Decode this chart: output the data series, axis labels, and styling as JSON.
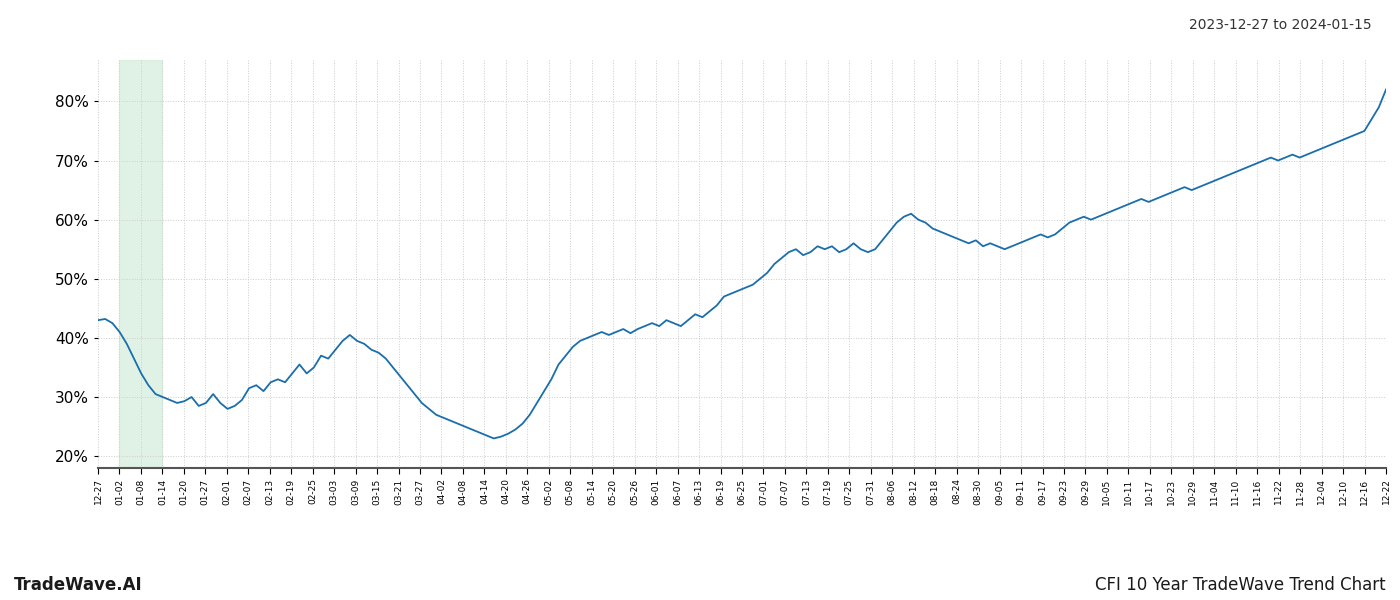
{
  "title_right": "2023-12-27 to 2024-01-15",
  "footer_left": "TradeWave.AI",
  "footer_right": "CFI 10 Year TradeWave Trend Chart",
  "line_color": "#1a6eab",
  "line_width": 1.3,
  "highlight_color": "#d4edda",
  "highlight_alpha": 0.7,
  "background_color": "#ffffff",
  "grid_color": "#cccccc",
  "ylim": [
    18,
    87
  ],
  "yticks": [
    20,
    30,
    40,
    50,
    60,
    70,
    80
  ],
  "x_labels": [
    "12-27",
    "01-02",
    "01-08",
    "01-14",
    "01-20",
    "01-27",
    "02-01",
    "02-07",
    "02-13",
    "02-19",
    "02-25",
    "03-03",
    "03-09",
    "03-15",
    "03-21",
    "03-27",
    "04-02",
    "04-08",
    "04-14",
    "04-20",
    "04-26",
    "05-02",
    "05-08",
    "05-14",
    "05-20",
    "05-26",
    "06-01",
    "06-07",
    "06-13",
    "06-19",
    "06-25",
    "07-01",
    "07-07",
    "07-13",
    "07-19",
    "07-25",
    "07-31",
    "08-06",
    "08-12",
    "08-18",
    "08-24",
    "08-30",
    "09-05",
    "09-11",
    "09-17",
    "09-23",
    "09-29",
    "10-05",
    "10-11",
    "10-17",
    "10-23",
    "10-29",
    "11-04",
    "11-10",
    "11-16",
    "11-22",
    "11-28",
    "12-04",
    "12-10",
    "12-16",
    "12-22"
  ],
  "highlight_label_start": "01-02",
  "highlight_label_end": "01-14",
  "values": [
    43.0,
    43.2,
    42.5,
    41.0,
    39.0,
    36.5,
    34.0,
    32.0,
    30.5,
    30.0,
    29.5,
    29.0,
    29.3,
    30.0,
    28.5,
    29.0,
    30.5,
    29.0,
    28.0,
    28.5,
    29.5,
    31.5,
    32.0,
    31.0,
    32.5,
    33.0,
    32.5,
    34.0,
    35.5,
    34.0,
    35.0,
    37.0,
    36.5,
    38.0,
    39.5,
    40.5,
    39.5,
    39.0,
    38.0,
    37.5,
    36.5,
    35.0,
    33.5,
    32.0,
    30.5,
    29.0,
    28.0,
    27.0,
    26.5,
    26.0,
    25.5,
    25.0,
    24.5,
    24.0,
    23.5,
    23.0,
    23.3,
    23.8,
    24.5,
    25.5,
    27.0,
    29.0,
    31.0,
    33.0,
    35.5,
    37.0,
    38.5,
    39.5,
    40.0,
    40.5,
    41.0,
    40.5,
    41.0,
    41.5,
    40.8,
    41.5,
    42.0,
    42.5,
    42.0,
    43.0,
    42.5,
    42.0,
    43.0,
    44.0,
    43.5,
    44.5,
    45.5,
    47.0,
    47.5,
    48.0,
    48.5,
    49.0,
    50.0,
    51.0,
    52.5,
    53.5,
    54.5,
    55.0,
    54.0,
    54.5,
    55.5,
    55.0,
    55.5,
    54.5,
    55.0,
    56.0,
    55.0,
    54.5,
    55.0,
    56.5,
    58.0,
    59.5,
    60.5,
    61.0,
    60.0,
    59.5,
    58.5,
    58.0,
    57.5,
    57.0,
    56.5,
    56.0,
    56.5,
    55.5,
    56.0,
    55.5,
    55.0,
    55.5,
    56.0,
    56.5,
    57.0,
    57.5,
    57.0,
    57.5,
    58.5,
    59.5,
    60.0,
    60.5,
    60.0,
    60.5,
    61.0,
    61.5,
    62.0,
    62.5,
    63.0,
    63.5,
    63.0,
    63.5,
    64.0,
    64.5,
    65.0,
    65.5,
    65.0,
    65.5,
    66.0,
    66.5,
    67.0,
    67.5,
    68.0,
    68.5,
    69.0,
    69.5,
    70.0,
    70.5,
    70.0,
    70.5,
    71.0,
    70.5,
    71.0,
    71.5,
    72.0,
    72.5,
    73.0,
    73.5,
    74.0,
    74.5,
    75.0,
    77.0,
    79.0,
    82.0
  ]
}
